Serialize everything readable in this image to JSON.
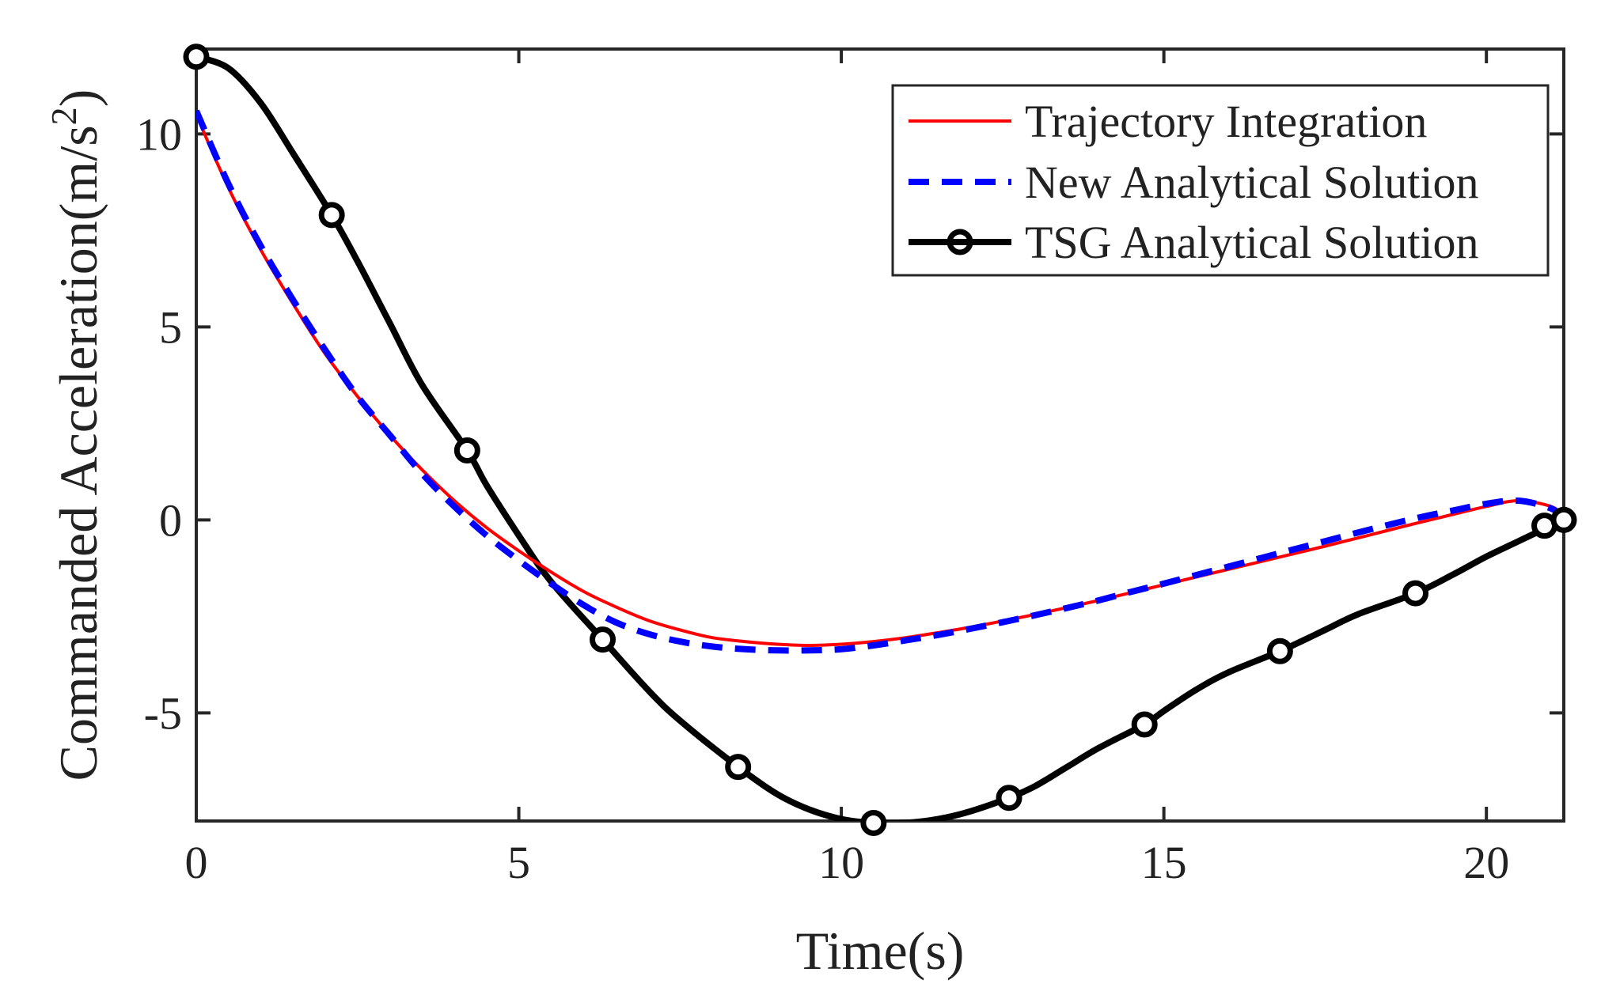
{
  "chart_data": {
    "type": "line",
    "title": "",
    "xlabel": "Time(s)",
    "ylabel_main": "Commanded Acceleration(m/s",
    "ylabel_sup": "2",
    "ylabel_close": ")",
    "xlim": [
      0,
      21.2
    ],
    "ylim": [
      -7.8,
      12.2
    ],
    "xticks": [
      0,
      5,
      10,
      15,
      20
    ],
    "xtick_labels": [
      "0",
      "5",
      "10",
      "15",
      "20"
    ],
    "yticks": [
      -5,
      0,
      5,
      10
    ],
    "ytick_labels": [
      "-5",
      "0",
      "5",
      "10"
    ],
    "grid": false,
    "legend_position": "top-right",
    "series": [
      {
        "name": "Trajectory Integration",
        "color": "#ff0000",
        "style": "solid",
        "x": [
          0,
          0.5,
          1,
          1.5,
          2,
          2.5,
          3,
          3.5,
          4,
          4.5,
          5,
          5.5,
          6,
          6.5,
          7,
          7.5,
          8,
          8.5,
          9,
          9.5,
          10,
          10.5,
          11,
          11.5,
          12,
          12.5,
          13,
          13.5,
          14,
          14.5,
          15,
          15.5,
          16,
          16.5,
          17,
          17.5,
          18,
          18.5,
          19,
          19.5,
          20,
          20.5,
          21,
          21.2
        ],
        "y": [
          10.5,
          8.6,
          7.0,
          5.6,
          4.3,
          3.2,
          2.2,
          1.3,
          0.5,
          -0.2,
          -0.8,
          -1.35,
          -1.85,
          -2.25,
          -2.6,
          -2.85,
          -3.05,
          -3.15,
          -3.22,
          -3.25,
          -3.22,
          -3.15,
          -3.05,
          -2.92,
          -2.78,
          -2.62,
          -2.45,
          -2.27,
          -2.08,
          -1.88,
          -1.68,
          -1.48,
          -1.28,
          -1.08,
          -0.88,
          -0.68,
          -0.47,
          -0.26,
          -0.05,
          0.15,
          0.35,
          0.5,
          0.35,
          0.1
        ]
      },
      {
        "name": "New Analytical Solution",
        "color": "#0000ff",
        "style": "dashed",
        "x": [
          0,
          0.5,
          1,
          1.5,
          2,
          2.5,
          3,
          3.5,
          4,
          4.5,
          5,
          5.5,
          6,
          6.5,
          7,
          7.5,
          8,
          8.5,
          9,
          9.5,
          10,
          10.5,
          11,
          11.5,
          12,
          12.5,
          13,
          13.5,
          14,
          14.5,
          15,
          15.5,
          16,
          16.5,
          17,
          17.5,
          18,
          18.5,
          19,
          19.5,
          20,
          20.5,
          21,
          21.2
        ],
        "y": [
          10.6,
          8.7,
          7.1,
          5.7,
          4.4,
          3.2,
          2.2,
          1.2,
          0.35,
          -0.4,
          -1.05,
          -1.65,
          -2.2,
          -2.65,
          -2.95,
          -3.15,
          -3.28,
          -3.35,
          -3.38,
          -3.38,
          -3.35,
          -3.25,
          -3.12,
          -2.98,
          -2.82,
          -2.65,
          -2.47,
          -2.28,
          -2.08,
          -1.86,
          -1.65,
          -1.43,
          -1.21,
          -0.99,
          -0.77,
          -0.55,
          -0.33,
          -0.12,
          0.08,
          0.25,
          0.42,
          0.5,
          0.3,
          0.05
        ]
      },
      {
        "name": "TSG Analytical Solution",
        "color": "#000000",
        "style": "solid-circle",
        "x": [
          0,
          0.5,
          1,
          1.5,
          2.1,
          2.5,
          3,
          3.5,
          4.2,
          4.5,
          5,
          5.5,
          6.3,
          7,
          7.5,
          8.4,
          9,
          9.5,
          10,
          10.5,
          11,
          11.5,
          12,
          12.6,
          13,
          13.5,
          14,
          14.7,
          15,
          15.5,
          16,
          16.8,
          17.5,
          18,
          18.9,
          19.5,
          20,
          20.5,
          21,
          21.2
        ],
        "y": [
          12.0,
          11.7,
          10.8,
          9.5,
          7.9,
          6.7,
          5.1,
          3.5,
          1.8,
          0.9,
          -0.4,
          -1.6,
          -3.1,
          -4.4,
          -5.2,
          -6.4,
          -7.1,
          -7.5,
          -7.75,
          -7.85,
          -7.85,
          -7.75,
          -7.55,
          -7.2,
          -6.9,
          -6.4,
          -5.9,
          -5.3,
          -4.95,
          -4.4,
          -3.95,
          -3.4,
          -2.85,
          -2.45,
          -1.9,
          -1.4,
          -0.95,
          -0.55,
          -0.15,
          0.0
        ]
      }
    ],
    "tsg_markers": {
      "x": [
        0,
        2.1,
        4.2,
        6.3,
        8.4,
        10.5,
        12.6,
        14.7,
        16.8,
        18.9,
        20.9,
        21.2
      ],
      "y": [
        12.0,
        7.9,
        1.8,
        -3.1,
        -6.4,
        -7.85,
        -7.2,
        -5.3,
        -3.4,
        -1.9,
        -0.15,
        0.0
      ]
    },
    "legend_entries": [
      "Trajectory Integration",
      "New Analytical Solution",
      "TSG Analytical Solution"
    ]
  }
}
